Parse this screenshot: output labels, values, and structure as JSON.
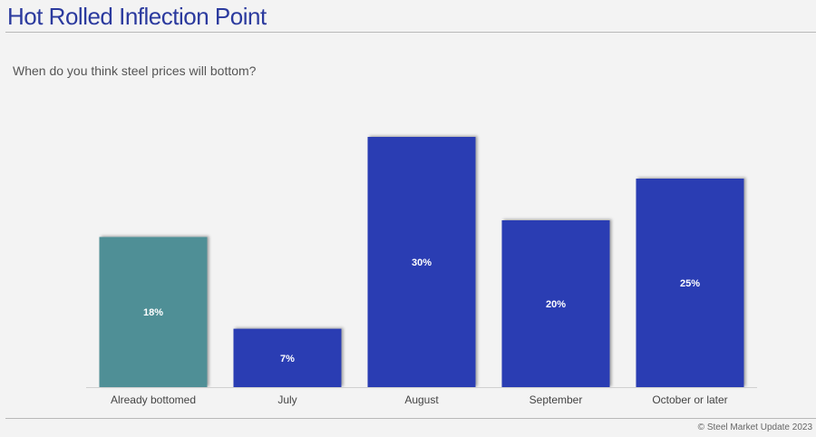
{
  "header": {
    "title": "Hot Rolled Inflection Point"
  },
  "footer": {
    "copyright": "© Steel Market Update 2023"
  },
  "chart_data": {
    "type": "bar",
    "title": "When do you think steel prices will bottom?",
    "categories": [
      "Already bottomed",
      "July",
      "August",
      "September",
      "October or later"
    ],
    "values": [
      18,
      7,
      30,
      20,
      25
    ],
    "data_labels": [
      "18%",
      "7%",
      "30%",
      "20%",
      "25%"
    ],
    "colors": [
      "#4f8f96",
      "#2b3db3",
      "#2b3db3",
      "#2b3db3",
      "#2b3db3"
    ],
    "ylim": [
      0,
      30
    ],
    "grid": false,
    "legend": "none"
  }
}
